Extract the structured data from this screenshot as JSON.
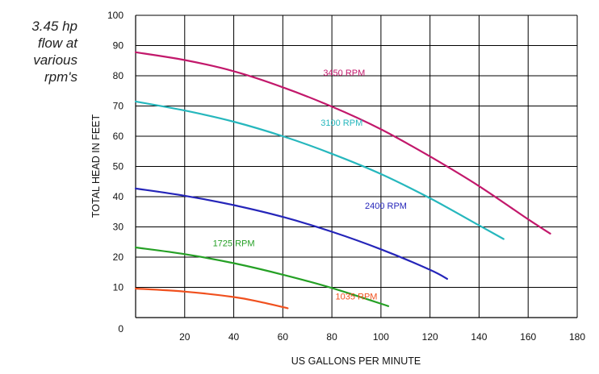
{
  "note": [
    "3.45 hp",
    "flow at",
    "various",
    "rpm's"
  ],
  "chart_data": {
    "type": "line",
    "xlabel": "US GALLONS PER MINUTE",
    "ylabel": "TOTAL HEAD IN FEET",
    "xlim": [
      0,
      180
    ],
    "ylim": [
      0,
      100
    ],
    "xticks": [
      20,
      40,
      60,
      80,
      100,
      120,
      140,
      160,
      180
    ],
    "yticks": [
      0,
      10,
      20,
      30,
      40,
      50,
      60,
      70,
      80,
      90,
      100
    ],
    "grid": true,
    "series": [
      {
        "name": "3450 RPM",
        "color": "#c2186b",
        "points": [
          [
            0,
            87.8
          ],
          [
            20,
            85.2
          ],
          [
            40,
            81.5
          ],
          [
            60,
            76.2
          ],
          [
            80,
            69.8
          ],
          [
            100,
            62.3
          ],
          [
            120,
            53.3
          ],
          [
            140,
            43.5
          ],
          [
            160,
            32.5
          ],
          [
            169,
            27.8
          ]
        ]
      },
      {
        "name": "3100 RPM",
        "color": "#26b7bd",
        "points": [
          [
            0,
            71.5
          ],
          [
            20,
            68.5
          ],
          [
            40,
            64.8
          ],
          [
            60,
            60
          ],
          [
            80,
            54.2
          ],
          [
            100,
            47.5
          ],
          [
            120,
            39.5
          ],
          [
            140,
            30.5
          ],
          [
            150,
            26
          ]
        ]
      },
      {
        "name": "2400 RPM",
        "color": "#2525b9",
        "points": [
          [
            0,
            42.7
          ],
          [
            20,
            40.3
          ],
          [
            40,
            37.2
          ],
          [
            60,
            33.3
          ],
          [
            80,
            28.4
          ],
          [
            100,
            22.6
          ],
          [
            120,
            15.8
          ],
          [
            127,
            12.8
          ]
        ]
      },
      {
        "name": "1725 RPM",
        "color": "#25a025",
        "points": [
          [
            0,
            23.2
          ],
          [
            20,
            21
          ],
          [
            40,
            18
          ],
          [
            60,
            14.2
          ],
          [
            80,
            9.8
          ],
          [
            103,
            3.8
          ]
        ]
      },
      {
        "name": "1035 RPM",
        "color": "#f0501e",
        "points": [
          [
            0,
            9.6
          ],
          [
            20,
            8.6
          ],
          [
            40,
            6.8
          ],
          [
            50,
            5.3
          ],
          [
            62,
            3.1
          ]
        ]
      }
    ]
  }
}
